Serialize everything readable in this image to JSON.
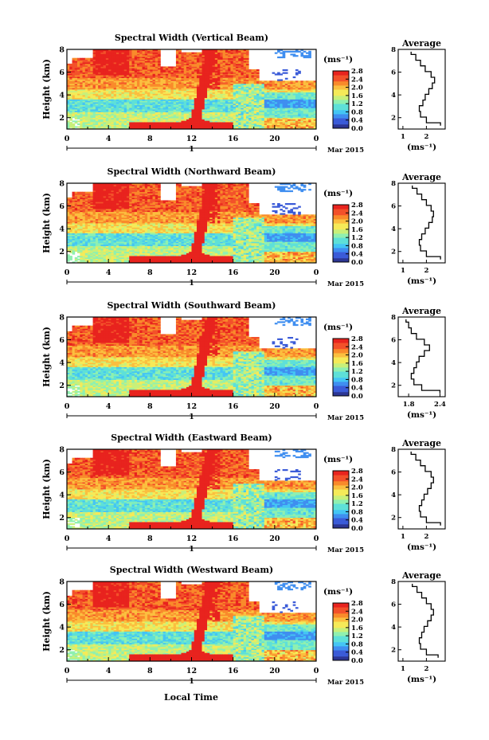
{
  "figure": {
    "xaxis_title": "Local Time",
    "day_label": "1",
    "month_label": "Mar 2015",
    "height_label": "Height (km)",
    "avg_title": "Average",
    "colorbar_unit": "(ms⁻¹)",
    "avg_xunit": "(ms⁻¹)"
  },
  "colorbar_ticks": [
    "0.0",
    "0.4",
    "0.8",
    "1.2",
    "1.6",
    "2.0",
    "2.4",
    "2.8"
  ],
  "colormap": [
    "#2d3694",
    "#3b5bd8",
    "#3f8ef0",
    "#44c5f4",
    "#5ee0d8",
    "#8ff0b0",
    "#c8f07a",
    "#f5ea58",
    "#fbbf3f",
    "#f98b2b",
    "#f3512a",
    "#e8231e"
  ],
  "chart_data": [
    {
      "type": "heatmap",
      "title": "Spectral Width (Vertical Beam)",
      "xlabel": "Local Time",
      "ylabel": "Height (km)",
      "xticks": [
        "0",
        "4",
        "8",
        "12",
        "16",
        "20",
        "0"
      ],
      "yticks": [
        "2",
        "4",
        "6",
        "8"
      ],
      "xlim": [
        0,
        24
      ],
      "ylim": [
        1,
        8
      ],
      "colorbar": {
        "label": "(ms⁻¹)",
        "range": [
          0.0,
          2.8
        ]
      },
      "average_profile": {
        "title": "Average",
        "xlabel": "(ms⁻¹)",
        "xticks": [
          "1",
          "2"
        ],
        "xlim": [
          0.8,
          2.8
        ],
        "yticks": [
          "2",
          "4",
          "6",
          "8"
        ],
        "ylim": [
          1,
          8
        ],
        "height": [
          1.3,
          1.8,
          2.3,
          2.8,
          3.3,
          3.8,
          4.3,
          4.8,
          5.3,
          5.8,
          6.3,
          6.8,
          7.3,
          7.8
        ],
        "value": [
          2.6,
          2.0,
          1.75,
          1.7,
          1.85,
          1.95,
          2.1,
          2.25,
          2.35,
          2.2,
          1.95,
          1.75,
          1.55,
          1.35
        ]
      }
    },
    {
      "type": "heatmap",
      "title": "Spectral Width (Northward Beam)",
      "xlabel": "Local Time",
      "ylabel": "Height (km)",
      "xticks": [
        "0",
        "4",
        "8",
        "12",
        "16",
        "20",
        "0"
      ],
      "yticks": [
        "2",
        "4",
        "6",
        "8"
      ],
      "xlim": [
        0,
        24
      ],
      "ylim": [
        1,
        8
      ],
      "colorbar": {
        "label": "(ms⁻¹)",
        "range": [
          0.0,
          2.8
        ]
      },
      "average_profile": {
        "title": "Average",
        "xlabel": "(ms⁻¹)",
        "xticks": [
          "1",
          "2"
        ],
        "xlim": [
          0.8,
          2.8
        ],
        "yticks": [
          "2",
          "4",
          "6",
          "8"
        ],
        "ylim": [
          1,
          8
        ],
        "height": [
          1.3,
          1.8,
          2.3,
          2.8,
          3.3,
          3.8,
          4.3,
          4.8,
          5.3,
          5.8,
          6.3,
          6.8,
          7.3,
          7.8
        ],
        "value": [
          2.6,
          2.0,
          1.75,
          1.7,
          1.8,
          1.95,
          2.1,
          2.25,
          2.3,
          2.2,
          2.0,
          1.8,
          1.6,
          1.4
        ]
      }
    },
    {
      "type": "heatmap",
      "title": "Spectral Width (Southward Beam)",
      "xlabel": "Local Time",
      "ylabel": "Height (km)",
      "xticks": [
        "0",
        "4",
        "8",
        "12",
        "16",
        "20",
        "0"
      ],
      "yticks": [
        "2",
        "4",
        "6",
        "8"
      ],
      "xlim": [
        0,
        24
      ],
      "ylim": [
        1,
        8
      ],
      "colorbar": {
        "label": "(ms⁻¹)",
        "range": [
          0.0,
          2.8
        ]
      },
      "average_profile": {
        "title": "Average",
        "xlabel": "(ms⁻¹)",
        "xticks": [
          "1.8",
          "2.4"
        ],
        "xlim": [
          1.6,
          2.5
        ],
        "yticks": [
          "2",
          "4",
          "6",
          "8"
        ],
        "ylim": [
          1,
          8
        ],
        "height": [
          1.3,
          1.8,
          2.3,
          2.8,
          3.3,
          3.8,
          4.3,
          4.8,
          5.3,
          5.8,
          6.3,
          6.8,
          7.3,
          7.8
        ],
        "value": [
          2.4,
          2.05,
          1.9,
          1.85,
          1.9,
          1.95,
          2.0,
          2.1,
          2.2,
          2.1,
          1.95,
          1.85,
          1.8,
          1.75
        ]
      }
    },
    {
      "type": "heatmap",
      "title": "Spectral Width (Eastward Beam)",
      "xlabel": "Local Time",
      "ylabel": "Height (km)",
      "xticks": [
        "0",
        "4",
        "8",
        "12",
        "16",
        "20",
        "0"
      ],
      "yticks": [
        "2",
        "4",
        "6",
        "8"
      ],
      "xlim": [
        0,
        24
      ],
      "ylim": [
        1,
        8
      ],
      "colorbar": {
        "label": "(ms⁻¹)",
        "range": [
          0.0,
          2.8
        ]
      },
      "average_profile": {
        "title": "Average",
        "xlabel": "(ms⁻¹)",
        "xticks": [
          "1",
          "2"
        ],
        "xlim": [
          0.8,
          2.8
        ],
        "yticks": [
          "2",
          "4",
          "6",
          "8"
        ],
        "ylim": [
          1,
          8
        ],
        "height": [
          1.3,
          1.8,
          2.3,
          2.8,
          3.3,
          3.8,
          4.3,
          4.8,
          5.3,
          5.8,
          6.3,
          6.8,
          7.3,
          7.8
        ],
        "value": [
          2.6,
          2.0,
          1.75,
          1.7,
          1.8,
          1.9,
          2.05,
          2.2,
          2.3,
          2.2,
          1.95,
          1.75,
          1.55,
          1.35
        ]
      }
    },
    {
      "type": "heatmap",
      "title": "Spectral Width (Westward Beam)",
      "xlabel": "Local Time",
      "ylabel": "Height (km)",
      "xticks": [
        "0",
        "4",
        "8",
        "12",
        "16",
        "20",
        "0"
      ],
      "yticks": [
        "2",
        "4",
        "6",
        "8"
      ],
      "xlim": [
        0,
        24
      ],
      "ylim": [
        1,
        8
      ],
      "colorbar": {
        "label": "(ms⁻¹)",
        "range": [
          0.0,
          2.8
        ]
      },
      "average_profile": {
        "title": "Average",
        "xlabel": "(ms⁻¹)",
        "xticks": [
          "1",
          "2"
        ],
        "xlim": [
          0.8,
          2.8
        ],
        "yticks": [
          "2",
          "4",
          "6",
          "8"
        ],
        "ylim": [
          1,
          8
        ],
        "height": [
          1.3,
          1.8,
          2.3,
          2.8,
          3.3,
          3.8,
          4.3,
          4.8,
          5.3,
          5.8,
          6.3,
          6.8,
          7.3,
          7.8
        ],
        "value": [
          2.5,
          2.0,
          1.75,
          1.7,
          1.8,
          1.9,
          2.05,
          2.2,
          2.3,
          2.2,
          2.0,
          1.8,
          1.6,
          1.4
        ]
      }
    }
  ]
}
